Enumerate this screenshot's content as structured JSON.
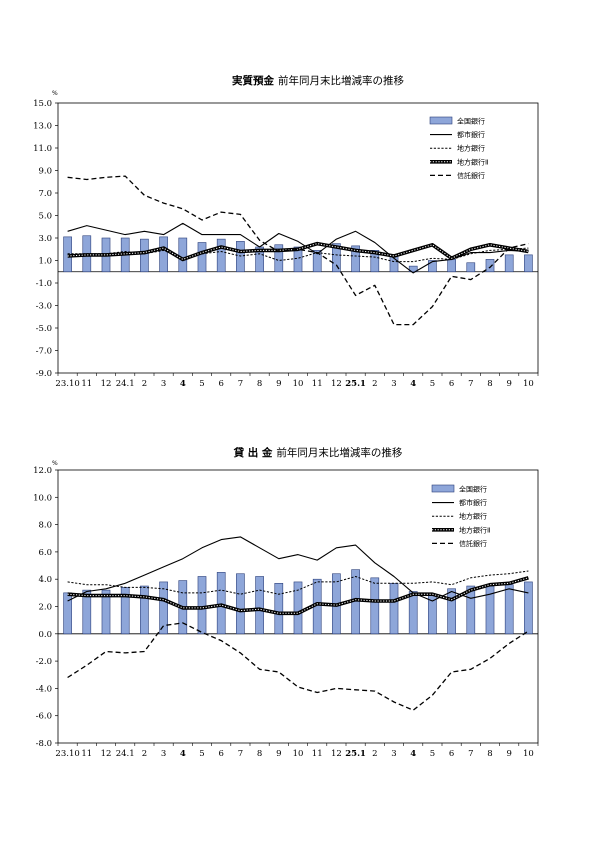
{
  "chart_data": [
    {
      "type": "bar",
      "title": "実質預金",
      "subtitle": "前年同月末比増減率の推移",
      "ylabel": "%",
      "categories": [
        "23.10",
        "11",
        "12",
        "24.1",
        "2",
        "3",
        "4",
        "5",
        "6",
        "7",
        "8",
        "9",
        "10",
        "11",
        "12",
        "25.1",
        "2",
        "3",
        "4",
        "5",
        "6",
        "7",
        "8",
        "9",
        "10"
      ],
      "bold_categories": [
        "4",
        "25.1",
        "4"
      ],
      "ylim": [
        -9.0,
        15.0
      ],
      "yticks": [
        "15.0",
        "13.0",
        "11.0",
        "9.0",
        "7.0",
        "5.0",
        "3.0",
        "1.0",
        "-1.0",
        "-3.0",
        "-5.0",
        "-7.0",
        "-9.0"
      ],
      "legend_position": "top-right",
      "series": [
        {
          "name": "全国銀行",
          "style": "bar",
          "values": [
            3.1,
            3.2,
            3.0,
            3.0,
            2.9,
            3.1,
            3.0,
            2.6,
            2.9,
            2.7,
            2.2,
            2.4,
            2.2,
            1.9,
            2.5,
            2.3,
            1.9,
            1.5,
            0.5,
            1.0,
            1.1,
            0.8,
            1.1,
            1.5,
            1.5
          ]
        },
        {
          "name": "都市銀行",
          "style": "solid-thin",
          "values": [
            3.6,
            4.1,
            3.7,
            3.3,
            3.6,
            3.3,
            4.3,
            3.3,
            3.3,
            3.3,
            2.2,
            3.4,
            2.7,
            1.6,
            2.9,
            3.6,
            2.6,
            1.2,
            -0.1,
            0.9,
            1.1,
            1.7,
            1.7,
            1.9,
            1.8
          ]
        },
        {
          "name": "地方銀行",
          "style": "dotted",
          "values": [
            1.6,
            1.6,
            1.6,
            1.8,
            1.6,
            1.9,
            1.2,
            1.6,
            1.8,
            1.4,
            1.6,
            1.0,
            1.2,
            1.7,
            1.5,
            1.4,
            1.3,
            0.9,
            0.9,
            1.2,
            1.1,
            1.6,
            1.9,
            2.0,
            2.1
          ]
        },
        {
          "name": "地方銀行Ⅱ",
          "style": "thick",
          "values": [
            1.4,
            1.5,
            1.5,
            1.6,
            1.7,
            2.1,
            1.1,
            1.7,
            2.2,
            1.8,
            1.9,
            1.9,
            2.0,
            2.5,
            2.2,
            1.9,
            1.7,
            1.4,
            1.9,
            2.4,
            1.2,
            2.0,
            2.4,
            2.1,
            1.8
          ]
        },
        {
          "name": "信託銀行",
          "style": "dashed",
          "values": [
            8.4,
            8.2,
            8.4,
            8.5,
            6.8,
            6.1,
            5.6,
            4.6,
            5.3,
            5.1,
            2.8,
            1.8,
            2.0,
            1.7,
            0.6,
            -2.1,
            -1.2,
            -4.7,
            -4.7,
            -3.1,
            -0.4,
            -0.7,
            0.4,
            2.1,
            2.5
          ]
        }
      ]
    },
    {
      "type": "bar",
      "title": "貸 出 金",
      "subtitle": "前年同月末比増減率の推移",
      "ylabel": "%",
      "categories": [
        "23.10",
        "11",
        "12",
        "24.1",
        "2",
        "3",
        "4",
        "5",
        "6",
        "7",
        "8",
        "9",
        "10",
        "11",
        "12",
        "25.1",
        "2",
        "3",
        "4",
        "5",
        "6",
        "7",
        "8",
        "9",
        "10"
      ],
      "bold_categories": [
        "4",
        "25.1",
        "4"
      ],
      "ylim": [
        -8.0,
        12.0
      ],
      "yticks": [
        "12.0",
        "10.0",
        "8.0",
        "6.0",
        "4.0",
        "2.0",
        "0.0",
        "-2.0",
        "-4.0",
        "-6.0",
        "-8.0"
      ],
      "legend_position": "top-right",
      "series": [
        {
          "name": "全国銀行",
          "style": "bar",
          "values": [
            3.0,
            3.2,
            3.2,
            3.4,
            3.5,
            3.8,
            3.9,
            4.2,
            4.5,
            4.4,
            4.2,
            3.7,
            3.8,
            4.0,
            4.4,
            4.7,
            4.1,
            3.7,
            3.1,
            2.8,
            3.3,
            3.5,
            3.5,
            3.6,
            3.8
          ]
        },
        {
          "name": "都市銀行",
          "style": "solid-thin",
          "values": [
            2.4,
            3.1,
            3.3,
            3.7,
            4.3,
            4.9,
            5.5,
            6.3,
            6.9,
            7.1,
            6.3,
            5.5,
            5.8,
            5.4,
            6.3,
            6.5,
            5.2,
            4.2,
            3.0,
            2.4,
            3.1,
            2.6,
            2.9,
            3.3,
            3.0
          ]
        },
        {
          "name": "地方銀行",
          "style": "dotted",
          "values": [
            3.8,
            3.6,
            3.6,
            3.4,
            3.4,
            3.3,
            3.0,
            3.0,
            3.2,
            2.9,
            3.2,
            2.9,
            3.2,
            3.8,
            3.8,
            4.2,
            3.7,
            3.7,
            3.7,
            3.8,
            3.6,
            4.1,
            4.3,
            4.4,
            4.6
          ]
        },
        {
          "name": "地方銀行Ⅱ",
          "style": "thick",
          "values": [
            2.9,
            2.8,
            2.8,
            2.8,
            2.7,
            2.5,
            1.9,
            1.9,
            2.1,
            1.7,
            1.8,
            1.5,
            1.5,
            2.2,
            2.1,
            2.5,
            2.4,
            2.4,
            2.9,
            2.9,
            2.5,
            3.2,
            3.6,
            3.7,
            4.1
          ]
        },
        {
          "name": "信託銀行",
          "style": "dashed",
          "values": [
            -3.2,
            -2.3,
            -1.3,
            -1.4,
            -1.3,
            0.6,
            0.8,
            0.1,
            -0.5,
            -1.4,
            -2.6,
            -2.8,
            -3.9,
            -4.3,
            -4.0,
            -4.1,
            -4.2,
            -5.0,
            -5.6,
            -4.5,
            -2.8,
            -2.6,
            -1.8,
            -0.7,
            0.2
          ]
        }
      ]
    }
  ]
}
